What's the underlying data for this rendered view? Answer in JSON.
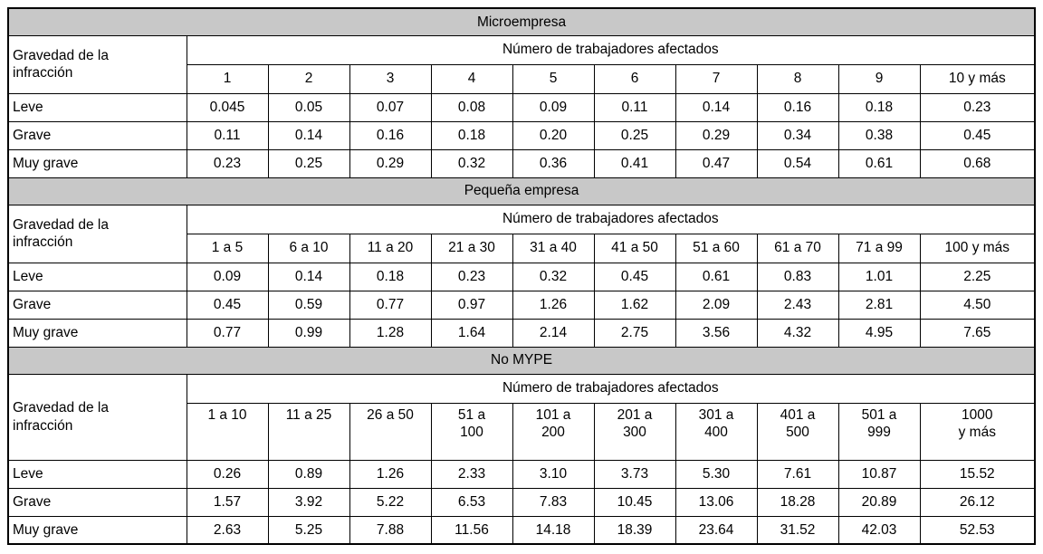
{
  "table": {
    "row_header_label": "Gravedad de la\ninfracción",
    "col_group_label": "Número de trabajadores afectados",
    "colors": {
      "band_bg": "#c8c8c8",
      "border": "#000000",
      "text": "#000000"
    },
    "sections": [
      {
        "title": "Microempresa",
        "columns": [
          "1",
          "2",
          "3",
          "4",
          "5",
          "6",
          "7",
          "8",
          "9",
          "10 y más"
        ],
        "rows": [
          {
            "label": "Leve",
            "values": [
              "0.045",
              "0.05",
              "0.07",
              "0.08",
              "0.09",
              "0.11",
              "0.14",
              "0.16",
              "0.18",
              "0.23"
            ]
          },
          {
            "label": "Grave",
            "values": [
              "0.11",
              "0.14",
              "0.16",
              "0.18",
              "0.20",
              "0.25",
              "0.29",
              "0.34",
              "0.38",
              "0.45"
            ]
          },
          {
            "label": "Muy grave",
            "values": [
              "0.23",
              "0.25",
              "0.29",
              "0.32",
              "0.36",
              "0.41",
              "0.47",
              "0.54",
              "0.61",
              "0.68"
            ]
          }
        ]
      },
      {
        "title": "Pequeña empresa",
        "columns": [
          "1 a 5",
          "6 a 10",
          "11 a 20",
          "21 a 30",
          "31 a 40",
          "41 a 50",
          "51 a 60",
          "61 a 70",
          "71 a 99",
          "100 y más"
        ],
        "rows": [
          {
            "label": "Leve",
            "values": [
              "0.09",
              "0.14",
              "0.18",
              "0.23",
              "0.32",
              "0.45",
              "0.61",
              "0.83",
              "1.01",
              "2.25"
            ]
          },
          {
            "label": "Grave",
            "values": [
              "0.45",
              "0.59",
              "0.77",
              "0.97",
              "1.26",
              "1.62",
              "2.09",
              "2.43",
              "2.81",
              "4.50"
            ]
          },
          {
            "label": "Muy grave",
            "values": [
              "0.77",
              "0.99",
              "1.28",
              "1.64",
              "2.14",
              "2.75",
              "3.56",
              "4.32",
              "4.95",
              "7.65"
            ]
          }
        ]
      },
      {
        "title": "No MYPE",
        "columns": [
          "1 a 10",
          "11 a 25",
          "26 a 50",
          "51 a\n100",
          "101 a\n200",
          "201 a\n300",
          "301 a\n400",
          "401 a\n500",
          "501 a\n999",
          "1000\ny más"
        ],
        "rows": [
          {
            "label": "Leve",
            "values": [
              "0.26",
              "0.89",
              "1.26",
              "2.33",
              "3.10",
              "3.73",
              "5.30",
              "7.61",
              "10.87",
              "15.52"
            ]
          },
          {
            "label": "Grave",
            "values": [
              "1.57",
              "3.92",
              "5.22",
              "6.53",
              "7.83",
              "10.45",
              "13.06",
              "18.28",
              "20.89",
              "26.12"
            ]
          },
          {
            "label": "Muy grave",
            "values": [
              "2.63",
              "5.25",
              "7.88",
              "11.56",
              "14.18",
              "18.39",
              "23.64",
              "31.52",
              "42.03",
              "52.53"
            ]
          }
        ]
      }
    ]
  }
}
